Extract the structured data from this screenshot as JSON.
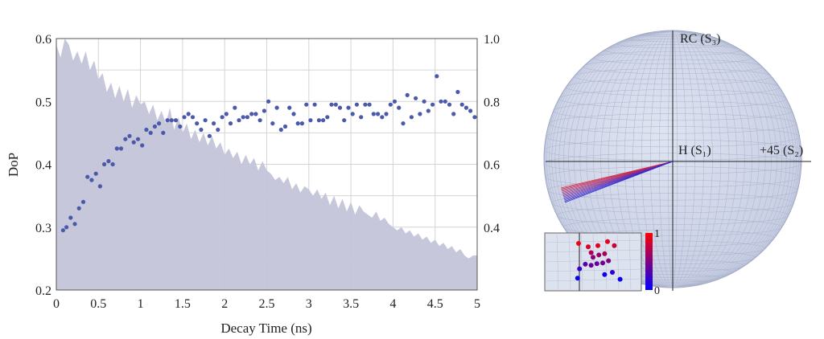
{
  "chart_data": [
    {
      "type": "scatter",
      "xlabel": "Decay Time (ns)",
      "ylabel": "DoP",
      "xlim": [
        0,
        5
      ],
      "ylim": [
        0.2,
        0.6
      ],
      "ylim_right": [
        0.2,
        1.0
      ],
      "x_ticks": [
        "0",
        "0.5",
        "1",
        "1.5",
        "2",
        "2.5",
        "3",
        "3.5",
        "4",
        "4.5",
        "5"
      ],
      "y_ticks_left": [
        "0.2",
        "0.3",
        "0.4",
        "0.5",
        "0.6"
      ],
      "y_ticks_right": [
        "0.4",
        "0.6",
        "0.8",
        "1.0"
      ],
      "grid": true,
      "area_series": {
        "axis": "right",
        "color": "#c4c4d9",
        "x": [
          0.0,
          0.05,
          0.1,
          0.15,
          0.2,
          0.25,
          0.3,
          0.35,
          0.4,
          0.45,
          0.5,
          0.55,
          0.6,
          0.65,
          0.7,
          0.75,
          0.8,
          0.85,
          0.9,
          0.95,
          1.0,
          1.05,
          1.1,
          1.15,
          1.2,
          1.25,
          1.3,
          1.35,
          1.4,
          1.45,
          1.5,
          1.55,
          1.6,
          1.65,
          1.7,
          1.75,
          1.8,
          1.85,
          1.9,
          1.95,
          2.0,
          2.05,
          2.1,
          2.15,
          2.2,
          2.25,
          2.3,
          2.35,
          2.4,
          2.45,
          2.5,
          2.55,
          2.6,
          2.65,
          2.7,
          2.75,
          2.8,
          2.85,
          2.9,
          2.95,
          3.0,
          3.05,
          3.1,
          3.15,
          3.2,
          3.25,
          3.3,
          3.35,
          3.4,
          3.45,
          3.5,
          3.55,
          3.6,
          3.65,
          3.7,
          3.75,
          3.8,
          3.85,
          3.9,
          3.95,
          4.0,
          4.05,
          4.1,
          4.15,
          4.2,
          4.25,
          4.3,
          4.35,
          4.4,
          4.45,
          4.5,
          4.55,
          4.6,
          4.65,
          4.7,
          4.75,
          4.8,
          4.85,
          4.9,
          4.95,
          5.0
        ],
        "y": [
          0.98,
          0.94,
          1.0,
          0.98,
          0.93,
          0.96,
          0.92,
          0.96,
          0.9,
          0.93,
          0.87,
          0.89,
          0.83,
          0.86,
          0.81,
          0.85,
          0.8,
          0.84,
          0.78,
          0.82,
          0.79,
          0.8,
          0.76,
          0.79,
          0.74,
          0.77,
          0.73,
          0.78,
          0.71,
          0.75,
          0.7,
          0.73,
          0.68,
          0.71,
          0.67,
          0.7,
          0.66,
          0.69,
          0.65,
          0.67,
          0.63,
          0.65,
          0.62,
          0.64,
          0.6,
          0.63,
          0.6,
          0.62,
          0.58,
          0.61,
          0.58,
          0.57,
          0.55,
          0.56,
          0.54,
          0.56,
          0.52,
          0.54,
          0.51,
          0.53,
          0.52,
          0.5,
          0.52,
          0.49,
          0.51,
          0.47,
          0.5,
          0.46,
          0.49,
          0.45,
          0.48,
          0.44,
          0.47,
          0.45,
          0.44,
          0.43,
          0.45,
          0.42,
          0.43,
          0.41,
          0.4,
          0.39,
          0.4,
          0.38,
          0.39,
          0.37,
          0.38,
          0.36,
          0.37,
          0.35,
          0.36,
          0.34,
          0.35,
          0.33,
          0.34,
          0.32,
          0.33,
          0.31,
          0.3,
          0.31,
          0.31
        ]
      },
      "scatter_series": {
        "axis": "left",
        "color": "#4a5aa8",
        "x": [
          0.08,
          0.12,
          0.17,
          0.22,
          0.27,
          0.32,
          0.37,
          0.42,
          0.47,
          0.52,
          0.57,
          0.62,
          0.67,
          0.72,
          0.77,
          0.82,
          0.87,
          0.92,
          0.97,
          1.02,
          1.07,
          1.12,
          1.17,
          1.22,
          1.27,
          1.32,
          1.37,
          1.42,
          1.47,
          1.52,
          1.57,
          1.62,
          1.67,
          1.72,
          1.77,
          1.82,
          1.87,
          1.92,
          1.97,
          2.02,
          2.07,
          2.12,
          2.17,
          2.22,
          2.27,
          2.32,
          2.37,
          2.42,
          2.47,
          2.52,
          2.57,
          2.62,
          2.67,
          2.72,
          2.77,
          2.82,
          2.87,
          2.92,
          2.97,
          3.02,
          3.07,
          3.12,
          3.17,
          3.22,
          3.27,
          3.32,
          3.37,
          3.42,
          3.47,
          3.52,
          3.57,
          3.62,
          3.67,
          3.72,
          3.77,
          3.82,
          3.87,
          3.92,
          3.97,
          4.02,
          4.07,
          4.12,
          4.17,
          4.22,
          4.27,
          4.32,
          4.37,
          4.42,
          4.47,
          4.52,
          4.57,
          4.62,
          4.67,
          4.72,
          4.77,
          4.82,
          4.87,
          4.92,
          4.97
        ],
        "y": [
          0.295,
          0.3,
          0.315,
          0.305,
          0.33,
          0.34,
          0.38,
          0.375,
          0.385,
          0.365,
          0.4,
          0.405,
          0.4,
          0.425,
          0.425,
          0.44,
          0.445,
          0.435,
          0.44,
          0.43,
          0.455,
          0.45,
          0.46,
          0.465,
          0.45,
          0.47,
          0.47,
          0.47,
          0.46,
          0.475,
          0.48,
          0.475,
          0.465,
          0.455,
          0.47,
          0.445,
          0.465,
          0.455,
          0.475,
          0.48,
          0.465,
          0.49,
          0.47,
          0.475,
          0.475,
          0.48,
          0.48,
          0.47,
          0.485,
          0.5,
          0.465,
          0.49,
          0.455,
          0.46,
          0.49,
          0.48,
          0.465,
          0.465,
          0.495,
          0.47,
          0.495,
          0.47,
          0.47,
          0.475,
          0.495,
          0.495,
          0.49,
          0.47,
          0.49,
          0.48,
          0.495,
          0.475,
          0.495,
          0.495,
          0.48,
          0.48,
          0.475,
          0.48,
          0.495,
          0.5,
          0.49,
          0.465,
          0.51,
          0.475,
          0.505,
          0.48,
          0.5,
          0.485,
          0.495,
          0.54,
          0.5,
          0.5,
          0.495,
          0.48,
          0.515,
          0.495,
          0.49,
          0.485,
          0.475
        ]
      }
    },
    {
      "type": "scatter",
      "subtype": "poincare-sphere",
      "axis_labels": {
        "s3": "RC (S₃)",
        "s1": "H (S₁)",
        "s2": "+45 (S₂)"
      },
      "sphere_color": "#cdd3e6",
      "ray_count": 14,
      "inset": {
        "colorbar_ticks": [
          "1",
          "0"
        ],
        "colormap": [
          "#0000ff",
          "#ff0000"
        ],
        "points": [
          {
            "x": 0.35,
            "y": 0.82,
            "v": 0.95
          },
          {
            "x": 0.45,
            "y": 0.76,
            "v": 0.85
          },
          {
            "x": 0.55,
            "y": 0.78,
            "v": 0.9
          },
          {
            "x": 0.65,
            "y": 0.85,
            "v": 0.9
          },
          {
            "x": 0.72,
            "y": 0.78,
            "v": 0.8
          },
          {
            "x": 0.48,
            "y": 0.66,
            "v": 0.7
          },
          {
            "x": 0.56,
            "y": 0.62,
            "v": 0.6
          },
          {
            "x": 0.62,
            "y": 0.64,
            "v": 0.65
          },
          {
            "x": 0.5,
            "y": 0.58,
            "v": 0.55
          },
          {
            "x": 0.42,
            "y": 0.46,
            "v": 0.35
          },
          {
            "x": 0.48,
            "y": 0.44,
            "v": 0.4
          },
          {
            "x": 0.54,
            "y": 0.47,
            "v": 0.4
          },
          {
            "x": 0.6,
            "y": 0.48,
            "v": 0.45
          },
          {
            "x": 0.66,
            "y": 0.52,
            "v": 0.5
          },
          {
            "x": 0.36,
            "y": 0.38,
            "v": 0.2
          },
          {
            "x": 0.7,
            "y": 0.32,
            "v": 0.2
          },
          {
            "x": 0.34,
            "y": 0.22,
            "v": 0.05
          },
          {
            "x": 0.62,
            "y": 0.28,
            "v": 0.05
          },
          {
            "x": 0.78,
            "y": 0.2,
            "v": 0.05
          }
        ]
      }
    }
  ]
}
